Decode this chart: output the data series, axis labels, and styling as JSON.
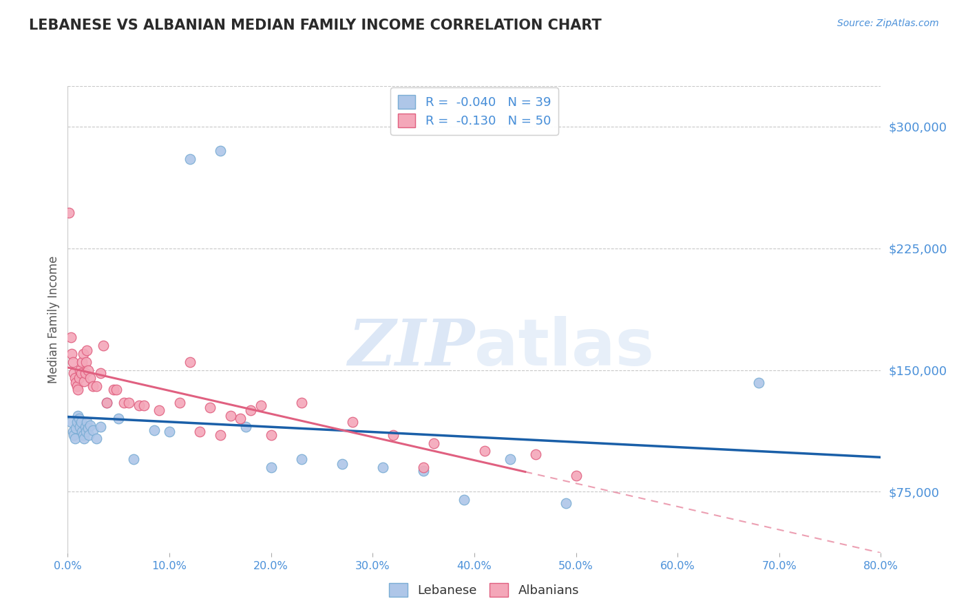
{
  "title": "LEBANESE VS ALBANIAN MEDIAN FAMILY INCOME CORRELATION CHART",
  "source": "Source: ZipAtlas.com",
  "ylabel": "Median Family Income",
  "xlim": [
    0.0,
    0.8
  ],
  "ylim": [
    37500,
    325000
  ],
  "yticks": [
    75000,
    150000,
    225000,
    300000
  ],
  "ytick_labels": [
    "$75,000",
    "$150,000",
    "$225,000",
    "$300,000"
  ],
  "xticks": [
    0.0,
    0.1,
    0.2,
    0.3,
    0.4,
    0.5,
    0.6,
    0.7,
    0.8
  ],
  "xtick_labels": [
    "0.0%",
    "10.0%",
    "20.0%",
    "30.0%",
    "40.0%",
    "50.0%",
    "60.0%",
    "70.0%",
    "80.0%"
  ],
  "legend_entries": [
    {
      "label": "R =  -0.040   N = 39"
    },
    {
      "label": "R =  -0.130   N = 50"
    }
  ],
  "legend_labels_bottom": [
    "Lebanese",
    "Albanians"
  ],
  "title_color": "#2a2a2a",
  "axis_label_color": "#555555",
  "tick_color": "#4a90d9",
  "grid_color": "#c8c8c8",
  "watermark_zip": "ZIP",
  "watermark_atlas": "atlas",
  "lb_scatter_x": [
    0.003,
    0.005,
    0.006,
    0.007,
    0.008,
    0.009,
    0.01,
    0.011,
    0.012,
    0.013,
    0.014,
    0.015,
    0.016,
    0.017,
    0.018,
    0.019,
    0.02,
    0.021,
    0.022,
    0.025,
    0.028,
    0.032,
    0.038,
    0.05,
    0.065,
    0.085,
    0.1,
    0.12,
    0.15,
    0.175,
    0.2,
    0.23,
    0.27,
    0.31,
    0.35,
    0.39,
    0.435,
    0.49,
    0.68
  ],
  "lb_scatter_y": [
    118000,
    112000,
    110000,
    108000,
    114000,
    118000,
    122000,
    120000,
    115000,
    118000,
    112000,
    110000,
    108000,
    115000,
    112000,
    118000,
    114000,
    110000,
    116000,
    113000,
    108000,
    115000,
    130000,
    120000,
    95000,
    113000,
    112000,
    280000,
    285000,
    115000,
    90000,
    95000,
    92000,
    90000,
    88000,
    70000,
    95000,
    68000,
    142000
  ],
  "al_scatter_x": [
    0.001,
    0.003,
    0.004,
    0.005,
    0.006,
    0.007,
    0.008,
    0.009,
    0.01,
    0.011,
    0.012,
    0.013,
    0.014,
    0.015,
    0.016,
    0.017,
    0.018,
    0.019,
    0.02,
    0.022,
    0.025,
    0.028,
    0.032,
    0.038,
    0.045,
    0.055,
    0.07,
    0.09,
    0.11,
    0.12,
    0.14,
    0.16,
    0.18,
    0.2,
    0.23,
    0.28,
    0.32,
    0.36,
    0.41,
    0.46,
    0.035,
    0.048,
    0.06,
    0.075,
    0.13,
    0.15,
    0.17,
    0.19,
    0.35,
    0.5
  ],
  "al_scatter_y": [
    247000,
    170000,
    160000,
    155000,
    148000,
    145000,
    142000,
    140000,
    138000,
    145000,
    150000,
    148000,
    155000,
    160000,
    143000,
    148000,
    155000,
    162000,
    150000,
    145000,
    140000,
    140000,
    148000,
    130000,
    138000,
    130000,
    128000,
    125000,
    130000,
    155000,
    127000,
    122000,
    125000,
    110000,
    130000,
    118000,
    110000,
    105000,
    100000,
    98000,
    165000,
    138000,
    130000,
    128000,
    112000,
    110000,
    120000,
    128000,
    90000,
    85000
  ],
  "lb_line_color": "#1a5fa8",
  "al_line_color": "#e06080",
  "lb_dot_color": "#aec6e8",
  "al_dot_color": "#f4a7b9",
  "lb_dot_edge": "#7aadd4",
  "al_dot_edge": "#e06080"
}
